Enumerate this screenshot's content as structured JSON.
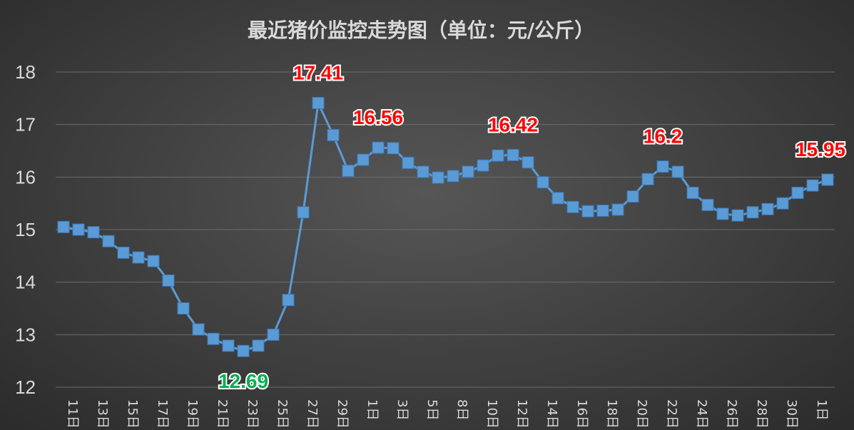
{
  "chart_data": {
    "type": "line",
    "title": "最近猪价监控走势图（单位：元/公斤）",
    "xlabel": "",
    "ylabel": "",
    "ylim": [
      12,
      18
    ],
    "yticks": [
      12,
      13,
      14,
      15,
      16,
      17,
      18
    ],
    "grid": true,
    "x_tick_labels": [
      "11日",
      "13日",
      "15日",
      "17日",
      "19日",
      "21日",
      "23日",
      "25日",
      "27日",
      "29日",
      "1日",
      "3日",
      "5日",
      "8日",
      "10日",
      "12日",
      "14日",
      "16日",
      "18日",
      "20日",
      "22日",
      "24日",
      "26日",
      "28日",
      "30日",
      "1日"
    ],
    "series": [
      {
        "values": [
          15.05,
          15.0,
          14.95,
          14.78,
          14.56,
          14.47,
          14.4,
          14.03,
          13.5,
          13.1,
          12.92,
          12.79,
          12.69,
          12.79,
          13.0,
          13.66,
          15.33,
          17.41,
          16.8,
          16.12,
          16.33,
          16.56,
          16.55,
          16.27,
          16.1,
          15.99,
          16.02,
          16.1,
          16.22,
          16.41,
          16.42,
          16.28,
          15.9,
          15.6,
          15.43,
          15.35,
          15.36,
          15.38,
          15.63,
          15.96,
          16.2,
          16.1,
          15.7,
          15.47,
          15.3,
          15.27,
          15.33,
          15.39,
          15.5,
          15.7,
          15.84,
          15.95
        ]
      }
    ],
    "annotations": [
      {
        "index": 12,
        "text": "12.69",
        "color": "#00b050",
        "position": "below"
      },
      {
        "index": 17,
        "text": "17.41",
        "color": "#ff0000",
        "position": "above"
      },
      {
        "index": 21,
        "text": "16.56",
        "color": "#ff0000",
        "position": "above"
      },
      {
        "index": 30,
        "text": "16.42",
        "color": "#ff0000",
        "position": "above"
      },
      {
        "index": 40,
        "text": "16.2",
        "color": "#ff0000",
        "position": "above"
      },
      {
        "index": 51,
        "text": "15.95",
        "color": "#ff0000",
        "position": "above"
      }
    ]
  }
}
